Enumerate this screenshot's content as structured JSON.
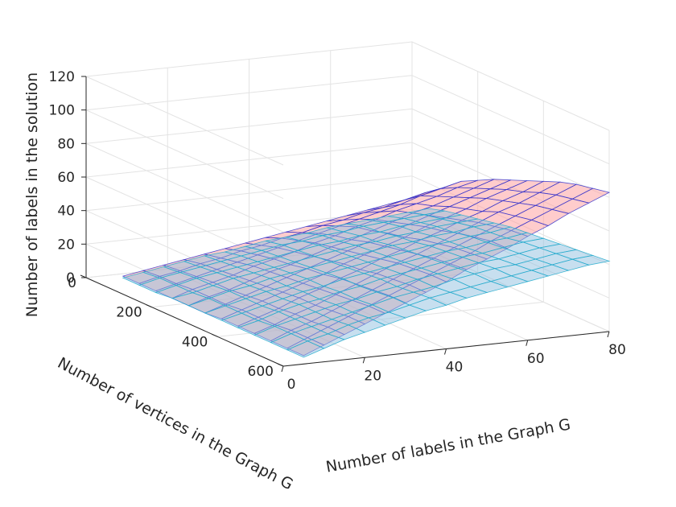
{
  "chart_data": {
    "type": "surface3d",
    "title": "",
    "xlabel": "Number of labels in the Graph G",
    "ylabel": "Number of vertices in the Graph G",
    "zlabel": "Number of labels in the solution",
    "xlim": [
      0,
      80
    ],
    "ylim": [
      0,
      600
    ],
    "zlim": [
      0,
      120
    ],
    "xticks": [
      "0",
      "20",
      "40",
      "60",
      "80"
    ],
    "yticks": [
      "0",
      "200",
      "400",
      "600"
    ],
    "zticks": [
      "0",
      "20",
      "40",
      "60",
      "80",
      "100",
      "120"
    ],
    "grid": true,
    "x_labels_in_graph": [
      5,
      10,
      15,
      20,
      25,
      30,
      35,
      40,
      45,
      50,
      55,
      60,
      65,
      70,
      75,
      80
    ],
    "y_vertices": [
      50,
      100,
      150,
      200,
      250,
      300,
      350,
      400,
      450,
      500,
      550,
      600
    ],
    "series": [
      {
        "color": "#ff9999",
        "edge_color": "#3333cc",
        "z": [
          [
            4,
            6,
            8,
            10,
            12,
            14,
            16,
            18,
            20,
            22,
            24,
            26,
            28,
            30,
            32,
            34
          ],
          [
            4,
            7,
            9,
            12,
            14,
            17,
            19,
            22,
            24,
            27,
            29,
            32,
            34,
            37,
            40,
            42
          ],
          [
            4,
            7,
            10,
            13,
            16,
            19,
            22,
            25,
            28,
            31,
            34,
            37,
            40,
            44,
            47,
            50
          ],
          [
            4,
            8,
            11,
            14,
            18,
            21,
            24,
            28,
            31,
            35,
            38,
            42,
            45,
            48,
            52,
            55
          ],
          [
            4,
            8,
            11,
            15,
            19,
            22,
            26,
            30,
            33,
            37,
            41,
            45,
            48,
            52,
            56,
            60
          ],
          [
            4,
            8,
            12,
            16,
            20,
            24,
            28,
            32,
            36,
            40,
            44,
            48,
            52,
            56,
            60,
            64
          ],
          [
            5,
            9,
            13,
            17,
            21,
            25,
            30,
            34,
            38,
            42,
            47,
            51,
            55,
            60,
            64,
            68
          ],
          [
            5,
            9,
            13,
            18,
            22,
            27,
            31,
            36,
            40,
            45,
            49,
            54,
            58,
            63,
            67,
            72
          ],
          [
            5,
            9,
            14,
            18,
            23,
            28,
            33,
            38,
            42,
            47,
            52,
            57,
            62,
            66,
            71,
            76
          ],
          [
            5,
            10,
            14,
            19,
            24,
            29,
            34,
            39,
            44,
            49,
            54,
            59,
            64,
            69,
            74,
            79
          ],
          [
            5,
            10,
            15,
            20,
            25,
            30,
            35,
            40,
            45,
            50,
            56,
            61,
            66,
            71,
            76,
            81
          ],
          [
            5,
            10,
            15,
            20,
            25,
            30,
            35,
            40,
            46,
            51,
            56,
            62,
            67,
            73,
            78,
            83
          ]
        ]
      },
      {
        "color": "#8fbfe0",
        "edge_color": "#22aacc",
        "z": [
          [
            3,
            5,
            7,
            9,
            11,
            12,
            14,
            16,
            17,
            18,
            20,
            21,
            22,
            23,
            24,
            25
          ],
          [
            3,
            6,
            8,
            10,
            12,
            14,
            16,
            18,
            19,
            21,
            22,
            24,
            25,
            26,
            27,
            28
          ],
          [
            3,
            6,
            9,
            11,
            13,
            15,
            17,
            19,
            21,
            22,
            24,
            25,
            27,
            28,
            29,
            30
          ],
          [
            4,
            6,
            9,
            12,
            14,
            16,
            18,
            20,
            22,
            24,
            25,
            27,
            28,
            30,
            31,
            32
          ],
          [
            4,
            7,
            10,
            12,
            15,
            17,
            19,
            21,
            23,
            25,
            27,
            28,
            30,
            31,
            33,
            34
          ],
          [
            4,
            7,
            10,
            13,
            15,
            18,
            20,
            22,
            24,
            26,
            28,
            30,
            31,
            33,
            34,
            36
          ],
          [
            4,
            7,
            10,
            13,
            16,
            18,
            21,
            23,
            25,
            27,
            29,
            31,
            32,
            34,
            35,
            37
          ],
          [
            4,
            7,
            11,
            14,
            16,
            19,
            21,
            24,
            26,
            28,
            30,
            32,
            33,
            35,
            37,
            38
          ],
          [
            4,
            8,
            11,
            14,
            17,
            19,
            22,
            24,
            27,
            29,
            31,
            33,
            34,
            36,
            38,
            39
          ],
          [
            4,
            8,
            11,
            14,
            17,
            20,
            23,
            25,
            27,
            30,
            32,
            34,
            35,
            37,
            39,
            40
          ],
          [
            4,
            8,
            11,
            15,
            18,
            20,
            23,
            26,
            28,
            30,
            32,
            34,
            36,
            38,
            40,
            41
          ],
          [
            4,
            8,
            12,
            15,
            18,
            21,
            24,
            26,
            29,
            31,
            33,
            35,
            37,
            39,
            41,
            42
          ]
        ]
      }
    ]
  }
}
